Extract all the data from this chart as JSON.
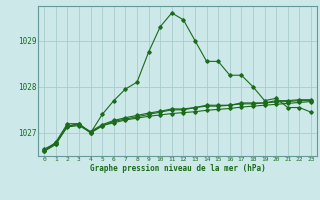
{
  "title": "Graphe pression niveau de la mer (hPa)",
  "xlabel": "Graphe pression niveau de la mer (hPa)",
  "x_ticks": [
    0,
    1,
    2,
    3,
    4,
    5,
    6,
    7,
    8,
    9,
    10,
    11,
    12,
    13,
    14,
    15,
    16,
    17,
    18,
    19,
    20,
    21,
    22,
    23
  ],
  "y_ticks": [
    1027,
    1028,
    1029
  ],
  "ylim": [
    1026.5,
    1029.75
  ],
  "xlim": [
    -0.5,
    23.5
  ],
  "bg_color": "#cce8e8",
  "grid_color": "#aacccc",
  "line_color": "#1a6b1a",
  "series1": [
    1026.6,
    1026.8,
    1027.2,
    1027.2,
    1027.0,
    1027.4,
    1027.7,
    1027.95,
    1028.1,
    1028.75,
    1029.3,
    1029.6,
    1029.45,
    1029.0,
    1028.55,
    1028.55,
    1028.25,
    1028.25,
    1028.0,
    1027.7,
    1027.75,
    1027.55,
    1027.55,
    1027.45
  ],
  "series2": [
    1026.6,
    1026.75,
    1027.15,
    1027.2,
    1027.0,
    1027.15,
    1027.25,
    1027.3,
    1027.35,
    1027.4,
    1027.45,
    1027.5,
    1027.5,
    1027.55,
    1027.6,
    1027.6,
    1027.6,
    1027.65,
    1027.65,
    1027.65,
    1027.7,
    1027.7,
    1027.72,
    1027.72
  ],
  "series3": [
    1026.65,
    1026.78,
    1027.15,
    1027.18,
    1027.03,
    1027.18,
    1027.27,
    1027.33,
    1027.38,
    1027.43,
    1027.47,
    1027.52,
    1027.52,
    1027.55,
    1027.58,
    1027.58,
    1027.6,
    1027.63,
    1027.63,
    1027.65,
    1027.67,
    1027.68,
    1027.7,
    1027.7
  ],
  "series4": [
    1026.62,
    1026.77,
    1027.13,
    1027.16,
    1027.01,
    1027.16,
    1027.22,
    1027.28,
    1027.32,
    1027.36,
    1027.39,
    1027.42,
    1027.44,
    1027.46,
    1027.49,
    1027.51,
    1027.53,
    1027.56,
    1027.58,
    1027.6,
    1027.62,
    1027.64,
    1027.66,
    1027.68
  ]
}
